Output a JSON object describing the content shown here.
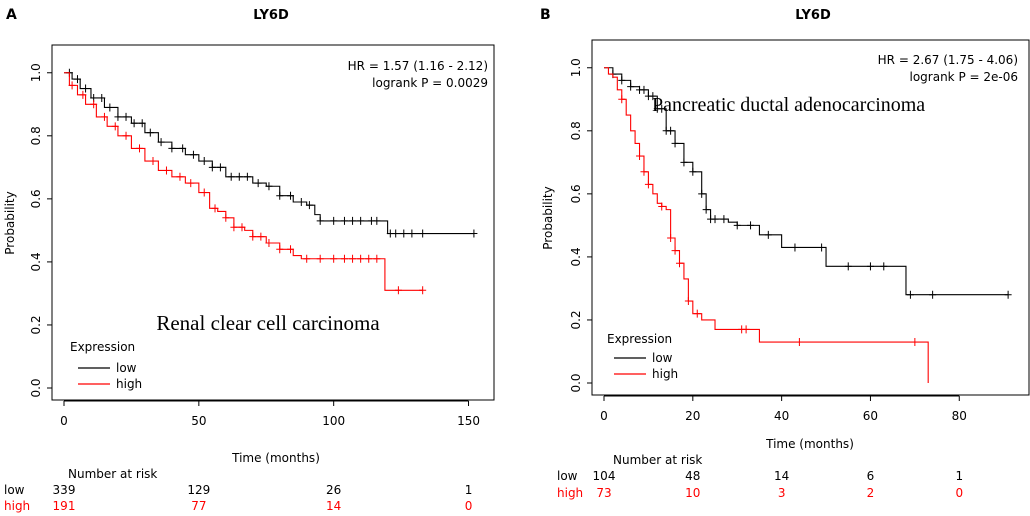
{
  "colors": {
    "low": "#000000",
    "high": "#ff0000",
    "axis": "#000000",
    "label": "#000000"
  },
  "chart_data": [
    {
      "type": "line",
      "panel_label": "A",
      "title": "LY6D",
      "subtitle_annotation": "Renal clear cell carcinoma",
      "xlabel": "Time (months)",
      "ylabel": "Probability",
      "xlim": [
        0,
        155
      ],
      "ylim": [
        0,
        1.05
      ],
      "xticks": [
        0,
        50,
        100,
        150
      ],
      "xtick_labels": [
        "0",
        "50",
        "100",
        "150"
      ],
      "yticks": [
        0,
        0.2,
        0.4,
        0.6,
        0.8,
        1.0
      ],
      "ytick_labels": [
        "0.0",
        "0.2",
        "0.4",
        "0.6",
        "0.8",
        "1.0"
      ],
      "hr_text": "HR = 1.57 (1.16 - 2.12)",
      "p_text": "logrank P = 0.0029",
      "legend": {
        "title": "Expression",
        "items": [
          "low",
          "high"
        ],
        "placement": "bottom-left"
      },
      "series": [
        {
          "name": "low",
          "x": [
            0,
            3,
            6,
            10,
            15,
            20,
            25,
            30,
            35,
            40,
            45,
            50,
            55,
            60,
            65,
            70,
            75,
            80,
            85,
            90,
            93,
            95,
            100,
            105,
            110,
            115,
            118,
            120,
            125,
            130,
            140,
            152
          ],
          "y": [
            1.0,
            0.98,
            0.95,
            0.92,
            0.89,
            0.86,
            0.84,
            0.81,
            0.78,
            0.76,
            0.74,
            0.72,
            0.7,
            0.67,
            0.67,
            0.65,
            0.64,
            0.61,
            0.59,
            0.58,
            0.55,
            0.53,
            0.53,
            0.53,
            0.53,
            0.53,
            0.53,
            0.49,
            0.49,
            0.49,
            0.49,
            0.49
          ],
          "censor_x": [
            2,
            5,
            8,
            11,
            14,
            17,
            20,
            23,
            26,
            29,
            32,
            36,
            40,
            44,
            48,
            52,
            55,
            58,
            62,
            65,
            68,
            72,
            76,
            80,
            84,
            88,
            91,
            95,
            100,
            104,
            107,
            110,
            114,
            116,
            121,
            123,
            126,
            129,
            133,
            152
          ]
        },
        {
          "name": "high",
          "x": [
            0,
            2,
            5,
            8,
            12,
            16,
            20,
            25,
            30,
            35,
            40,
            45,
            50,
            54,
            57,
            60,
            63,
            67,
            70,
            75,
            80,
            85,
            88,
            95,
            100,
            110,
            118,
            119,
            125,
            133
          ],
          "y": [
            1.0,
            0.96,
            0.93,
            0.9,
            0.86,
            0.83,
            0.8,
            0.76,
            0.72,
            0.69,
            0.67,
            0.65,
            0.62,
            0.57,
            0.56,
            0.54,
            0.51,
            0.5,
            0.48,
            0.46,
            0.44,
            0.42,
            0.41,
            0.41,
            0.41,
            0.41,
            0.41,
            0.31,
            0.31,
            0.31
          ],
          "censor_x": [
            3,
            7,
            11,
            15,
            19,
            23,
            28,
            33,
            38,
            43,
            47,
            52,
            56,
            60,
            63,
            66,
            70,
            73,
            76,
            80,
            84,
            90,
            95,
            100,
            104,
            107,
            110,
            113,
            116,
            124,
            133
          ]
        }
      ],
      "risk_table": {
        "header": "Number at risk",
        "rows": [
          {
            "label": "low",
            "values": [
              "339",
              "129",
              "26",
              "1"
            ]
          },
          {
            "label": "high",
            "values": [
              "191",
              "77",
              "14",
              "0"
            ]
          }
        ]
      }
    },
    {
      "type": "line",
      "panel_label": "B",
      "title": "LY6D",
      "subtitle_annotation": "Pancreatic ductal adenocarcinoma",
      "xlabel": "Time (months)",
      "ylabel": "Probability",
      "xlim": [
        0,
        93
      ],
      "ylim": [
        0,
        1.05
      ],
      "xticks": [
        0,
        20,
        40,
        60,
        80
      ],
      "xtick_labels": [
        "0",
        "20",
        "40",
        "60",
        "80"
      ],
      "yticks": [
        0,
        0.2,
        0.4,
        0.6,
        0.8,
        1.0
      ],
      "ytick_labels": [
        "0.0",
        "0.2",
        "0.4",
        "0.6",
        "0.8",
        "1.0"
      ],
      "hr_text": "HR = 2.67 (1.75 - 4.06)",
      "p_text": "logrank P = 2e-06",
      "legend": {
        "title": "Expression",
        "items": [
          "low",
          "high"
        ],
        "placement": "bottom-left"
      },
      "series": [
        {
          "name": "low",
          "x": [
            0,
            2,
            4,
            6,
            8,
            10,
            12,
            14,
            16,
            18,
            20,
            22,
            23,
            24,
            26,
            28,
            30,
            35,
            40,
            45,
            50,
            55,
            60,
            65,
            68,
            70,
            80,
            91
          ],
          "y": [
            1.0,
            0.98,
            0.96,
            0.94,
            0.93,
            0.91,
            0.87,
            0.8,
            0.76,
            0.7,
            0.67,
            0.6,
            0.55,
            0.52,
            0.52,
            0.51,
            0.5,
            0.47,
            0.43,
            0.43,
            0.37,
            0.37,
            0.37,
            0.37,
            0.28,
            0.28,
            0.28,
            0.28
          ],
          "censor_x": [
            2,
            4,
            6,
            8,
            9,
            10,
            11,
            12,
            13,
            14,
            15,
            16,
            18,
            20,
            22,
            23,
            24,
            25,
            27,
            30,
            33,
            37,
            43,
            49,
            55,
            60,
            63,
            69,
            74,
            91
          ]
        },
        {
          "name": "high",
          "x": [
            0,
            1,
            2,
            3,
            4,
            5,
            6,
            7,
            8,
            9,
            10,
            11,
            12,
            13,
            14,
            15,
            16,
            17,
            18,
            19,
            20,
            22,
            25,
            30,
            35,
            40,
            50,
            60,
            70,
            73
          ],
          "y": [
            1.0,
            0.98,
            0.97,
            0.93,
            0.9,
            0.85,
            0.8,
            0.76,
            0.72,
            0.67,
            0.63,
            0.6,
            0.57,
            0.56,
            0.55,
            0.46,
            0.42,
            0.38,
            0.33,
            0.26,
            0.22,
            0.2,
            0.17,
            0.17,
            0.13,
            0.13,
            0.13,
            0.13,
            0.13,
            0.0
          ],
          "censor_x": [
            4,
            8,
            9,
            10,
            13,
            15,
            16,
            17,
            19,
            21,
            31,
            32,
            44,
            70
          ]
        }
      ],
      "risk_table": {
        "header": "Number at risk",
        "rows": [
          {
            "label": "low",
            "values": [
              "104",
              "48",
              "14",
              "6",
              "1"
            ]
          },
          {
            "label": "high",
            "values": [
              "73",
              "10",
              "3",
              "2",
              "0"
            ]
          }
        ]
      }
    }
  ]
}
